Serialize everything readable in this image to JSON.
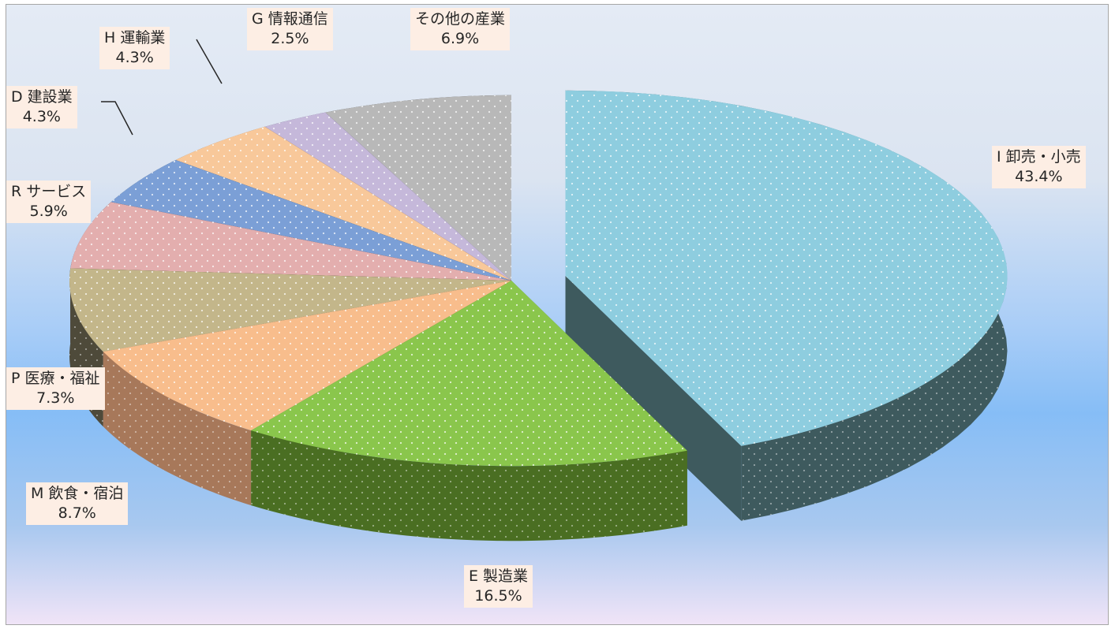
{
  "chart_data": {
    "type": "pie",
    "variant": "3d-exploded",
    "title": "",
    "legend": "none",
    "slices": [
      {
        "category": "I 卸売・小売",
        "value": 43.4,
        "label": "43.4%",
        "color": "#8ecddf",
        "dark_color": "#3e5a5e"
      },
      {
        "category": "E 製造業",
        "value": 16.5,
        "label": "16.5%",
        "color": "#8ac64c",
        "dark_color": "#4a6e22"
      },
      {
        "category": "M 飲食・宿泊",
        "value": 8.7,
        "label": "8.7%",
        "color": "#f8bd8c",
        "dark_color": "#a7785a"
      },
      {
        "category": "P 医療・福祉",
        "value": 7.3,
        "label": "7.3%",
        "color": "#c3b68a",
        "dark_color": "#4e4a3a"
      },
      {
        "category": "R サービス",
        "value": 5.9,
        "label": "5.9%",
        "color": "#e3aeae",
        "dark_color": "#5a3c3c"
      },
      {
        "category": "D 建設業",
        "value": 4.3,
        "label": "4.3%",
        "color": "#7b9fd6",
        "dark_color": "#2e4262"
      },
      {
        "category": "H 運輸業",
        "value": 4.3,
        "label": "4.3%",
        "color": "#f8c89a",
        "dark_color": "#6e5642"
      },
      {
        "category": "G 情報通信",
        "value": 2.5,
        "label": "2.5%",
        "color": "#c5b8da",
        "dark_color": "#55506a"
      },
      {
        "category": "その他の産業",
        "value": 6.9,
        "label": "6.9%",
        "color": "#b8b8b8",
        "dark_color": "#4a4a4a"
      }
    ]
  }
}
